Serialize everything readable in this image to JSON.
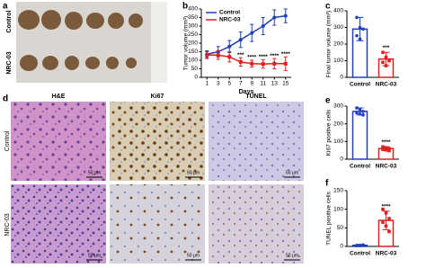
{
  "panel_labels": [
    "a",
    "b",
    "c",
    "d",
    "e",
    "f"
  ],
  "photo": {
    "row_labels": [
      "Control",
      "NRC-03"
    ]
  },
  "histology": {
    "columns": [
      "H&E",
      "Ki67",
      "TUNEL"
    ],
    "rows": [
      "Control",
      "NRC-03"
    ],
    "scale_bar": "50 μm"
  },
  "chart_data": [
    {
      "type": "line",
      "xlabel": "Days",
      "ylabel": "Tumor volume (mm³)",
      "x": [
        1,
        3,
        5,
        7,
        9,
        11,
        13,
        15
      ],
      "xlim": [
        0,
        16
      ],
      "xticks": [
        1,
        3,
        5,
        7,
        9,
        11,
        13,
        15
      ],
      "ylim": [
        0,
        400
      ],
      "yticks": [
        0,
        50,
        100,
        150,
        200,
        250,
        300,
        350,
        400
      ],
      "series": [
        {
          "name": "Control",
          "color": "#1f3fbf",
          "values": [
            135,
            150,
            180,
            220,
            260,
            300,
            350,
            360
          ],
          "errors": [
            20,
            30,
            35,
            45,
            50,
            50,
            45,
            40
          ]
        },
        {
          "name": "NRC-03",
          "color": "#e02020",
          "values": [
            130,
            130,
            120,
            90,
            80,
            78,
            80,
            80
          ],
          "errors": [
            20,
            25,
            30,
            25,
            20,
            25,
            30,
            40
          ]
        }
      ],
      "significance": [
        null,
        null,
        null,
        "***",
        "****",
        "****",
        "****",
        "****"
      ]
    },
    {
      "type": "bar",
      "ylabel": "Final tumor volume (mm³)",
      "categories": [
        "Control",
        "NRC-03"
      ],
      "values": [
        290,
        110
      ],
      "errors": [
        70,
        40
      ],
      "colors": [
        "#1f3fbf",
        "#e02020"
      ],
      "points": [
        [
          360,
          300,
          290,
          250,
          230
        ],
        [
          150,
          120,
          100,
          90,
          70
        ]
      ],
      "ylim": [
        0,
        400
      ],
      "yticks": [
        0,
        100,
        200,
        300,
        400
      ],
      "significance": [
        null,
        "***"
      ]
    },
    {
      "type": "bar",
      "ylabel": "Ki67 positive cells",
      "categories": [
        "Control",
        "NRC-03"
      ],
      "values": [
        270,
        60
      ],
      "errors": [
        20,
        10
      ],
      "colors": [
        "#1f3fbf",
        "#e02020"
      ],
      "points": [
        [
          290,
          280,
          270,
          262,
          255,
          250
        ],
        [
          70,
          65,
          60,
          55,
          52,
          48
        ]
      ],
      "ylim": [
        0,
        300
      ],
      "yticks": [
        0,
        100,
        200,
        300
      ],
      "significance": [
        null,
        "****"
      ]
    },
    {
      "type": "bar",
      "ylabel": "TUNEL positive cells",
      "categories": [
        "Control",
        "NRC-03"
      ],
      "values": [
        3,
        70
      ],
      "errors": [
        2,
        25
      ],
      "colors": [
        "#1f3fbf",
        "#e02020"
      ],
      "points": [
        [
          2,
          3,
          4,
          3,
          2,
          4
        ],
        [
          100,
          90,
          75,
          65,
          55,
          40
        ]
      ],
      "ylim": [
        0,
        150
      ],
      "yticks": [
        0,
        50,
        100,
        150
      ],
      "significance": [
        null,
        "****"
      ]
    }
  ]
}
